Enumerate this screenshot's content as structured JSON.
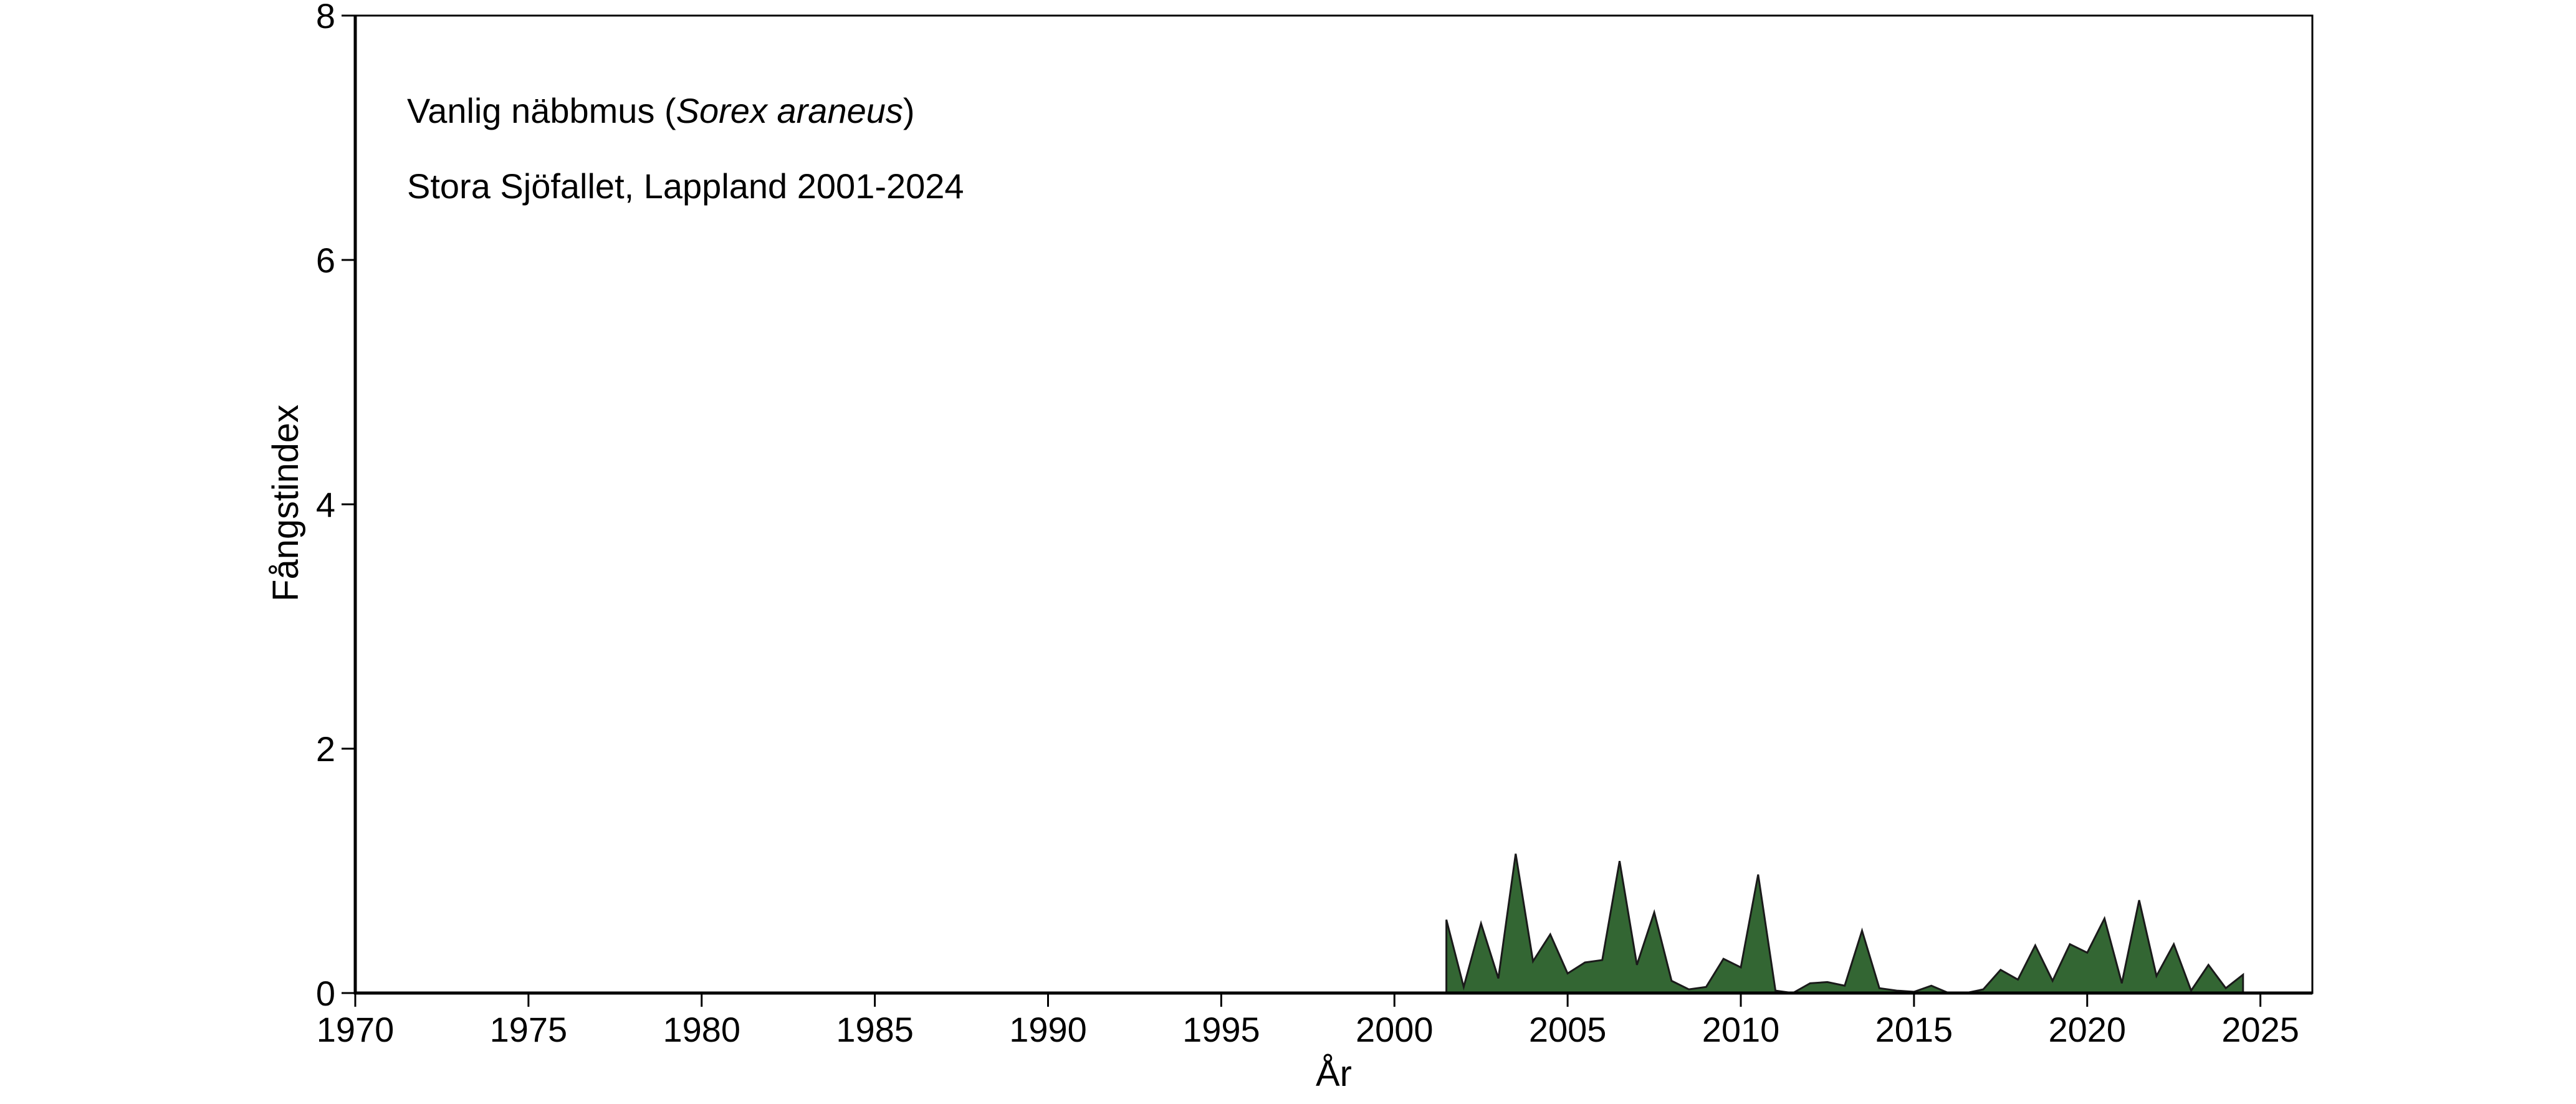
{
  "chart_data": {
    "type": "area",
    "title": "",
    "annotations": {
      "species_prefix": "Vanlig näbbmus (",
      "species_italic": "Sorex araneus",
      "species_suffix": ")",
      "location": "Stora Sjöfallet, Lappland 2001-2024"
    },
    "xlabel": "År",
    "ylabel": "Fångstindex",
    "xlim": [
      1970,
      2026.5
    ],
    "ylim": [
      0,
      8
    ],
    "x_ticks": [
      1970,
      1975,
      1980,
      1985,
      1990,
      1995,
      2000,
      2005,
      2010,
      2015,
      2020,
      2025
    ],
    "y_ticks": [
      0,
      2,
      4,
      6,
      8
    ],
    "grid": false,
    "fill_color": "#336633",
    "line_color": "#1a1a1a",
    "series": [
      {
        "x": [
          2001.5,
          2002.0,
          2002.5,
          2003.0,
          2003.5,
          2004.0,
          2004.5,
          2005.0,
          2005.5,
          2006.0,
          2006.5,
          2007.0,
          2007.5,
          2008.0,
          2008.5,
          2009.0,
          2009.5,
          2010.0,
          2010.5,
          2011.0,
          2011.5,
          2012.0,
          2012.5,
          2013.0,
          2013.5,
          2014.0,
          2014.5,
          2015.0,
          2015.5,
          2016.0,
          2016.5,
          2017.0,
          2017.5,
          2018.0,
          2018.5,
          2019.0,
          2019.5,
          2020.0,
          2020.5,
          2021.0,
          2021.5,
          2022.0,
          2022.5,
          2023.0,
          2023.5,
          2024.0,
          2024.5
        ],
        "values": [
          0.6,
          0.05,
          0.57,
          0.12,
          1.14,
          0.26,
          0.48,
          0.16,
          0.25,
          0.27,
          1.08,
          0.23,
          0.66,
          0.1,
          0.03,
          0.05,
          0.28,
          0.21,
          0.97,
          0.02,
          0.0,
          0.08,
          0.09,
          0.06,
          0.51,
          0.04,
          0.02,
          0.01,
          0.06,
          0.0,
          0.0,
          0.03,
          0.19,
          0.11,
          0.39,
          0.1,
          0.4,
          0.33,
          0.61,
          0.08,
          0.76,
          0.14,
          0.4,
          0.02,
          0.23,
          0.04,
          0.15
        ]
      }
    ]
  }
}
